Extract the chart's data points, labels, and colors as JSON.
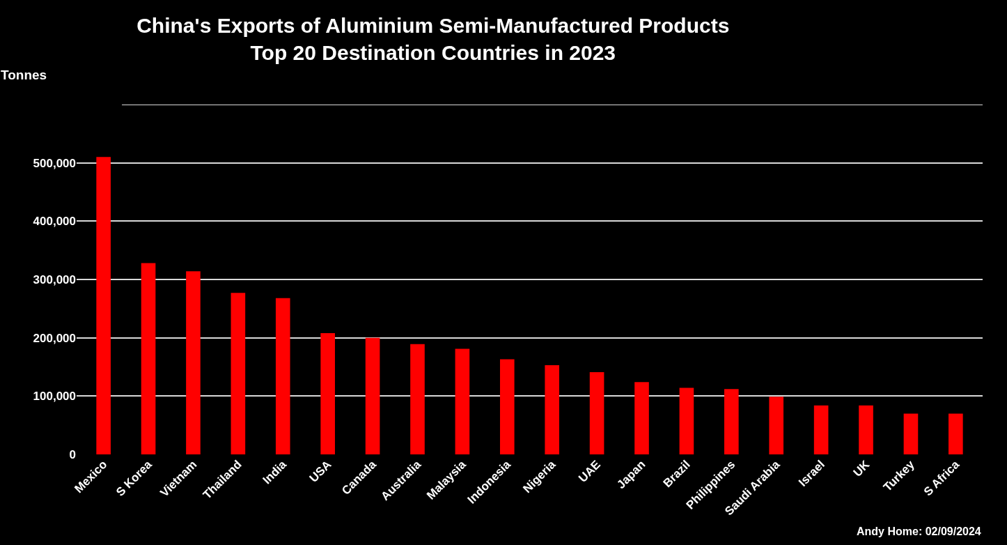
{
  "chart_data": {
    "type": "bar",
    "title": "China's Exports of Aluminium Semi-Manufactured Products\nTop 20 Destination Countries in 2023",
    "ylabel": "Tonnes",
    "categories": [
      "Mexico",
      "S Korea",
      "Vietnam",
      "Thailand",
      "India",
      "USA",
      "Canada",
      "Australia",
      "Malaysia",
      "Indonesia",
      "Nigeria",
      "UAE",
      "Japan",
      "Brazil",
      "Philippines",
      "Saudi Arabia",
      "Israel",
      "UK",
      "Turkey",
      "S Africa"
    ],
    "values": [
      510000,
      328000,
      314000,
      277000,
      268000,
      208000,
      200000,
      189000,
      181000,
      163000,
      153000,
      141000,
      124000,
      114000,
      112000,
      99000,
      84000,
      84000,
      70000,
      70000
    ],
    "color": "#ff0000",
    "ylim": [
      0,
      600000
    ],
    "yticks": [
      {
        "value": 0,
        "label": "0"
      },
      {
        "value": 100000,
        "label": "100,000"
      },
      {
        "value": 200000,
        "label": "200,000"
      },
      {
        "value": 300000,
        "label": "300,000"
      },
      {
        "value": 400000,
        "label": "400,000"
      },
      {
        "value": 500000,
        "label": "500,000"
      },
      {
        "value": 600000,
        "label": null
      }
    ],
    "grid": "y",
    "annotations": [
      "Andy Home: 02/09/2024"
    ]
  }
}
